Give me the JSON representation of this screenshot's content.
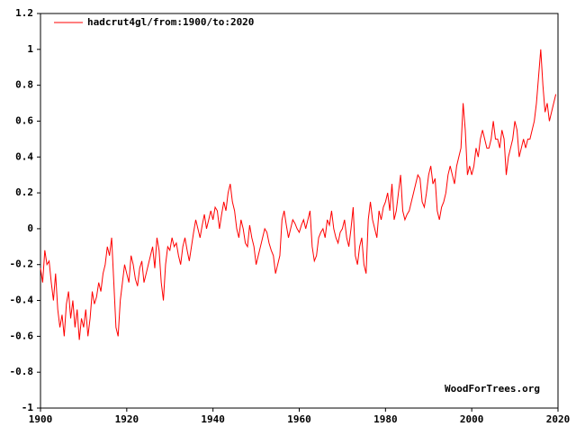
{
  "chart_data": {
    "type": "line",
    "legend": "upper left",
    "annotation": "WoodForTrees.org",
    "xlim": [
      1900,
      2020
    ],
    "xticks": [
      1900,
      1920,
      1940,
      1960,
      1980,
      2000,
      2020
    ],
    "ylim": [
      -1,
      1.2
    ],
    "yticks": [
      -1,
      -0.8,
      -0.6,
      -0.4,
      -0.2,
      0,
      0.2,
      0.4,
      0.6,
      0.8,
      1,
      1.2
    ],
    "x": [
      1900,
      1900.5,
      1901,
      1901.5,
      1902,
      1902.5,
      1903,
      1903.5,
      1904,
      1904.5,
      1905,
      1905.5,
      1906,
      1906.5,
      1907,
      1907.5,
      1908,
      1908.5,
      1909,
      1909.5,
      1910,
      1910.5,
      1911,
      1911.5,
      1912,
      1912.5,
      1913,
      1913.5,
      1914,
      1914.5,
      1915,
      1915.5,
      1916,
      1916.5,
      1917,
      1917.5,
      1918,
      1918.5,
      1919,
      1919.5,
      1920,
      1920.5,
      1921,
      1921.5,
      1922,
      1922.5,
      1923,
      1923.5,
      1924,
      1924.5,
      1925,
      1925.5,
      1926,
      1926.5,
      1927,
      1927.5,
      1928,
      1928.5,
      1929,
      1929.5,
      1930,
      1930.5,
      1931,
      1931.5,
      1932,
      1932.5,
      1933,
      1933.5,
      1934,
      1934.5,
      1935,
      1935.5,
      1936,
      1936.5,
      1937,
      1937.5,
      1938,
      1938.5,
      1939,
      1939.5,
      1940,
      1940.5,
      1941,
      1941.5,
      1942,
      1942.5,
      1943,
      1943.5,
      1944,
      1944.5,
      1945,
      1945.5,
      1946,
      1946.5,
      1947,
      1947.5,
      1948,
      1948.5,
      1949,
      1949.5,
      1950,
      1950.5,
      1951,
      1951.5,
      1952,
      1952.5,
      1953,
      1953.5,
      1954,
      1954.5,
      1955,
      1955.5,
      1956,
      1956.5,
      1957,
      1957.5,
      1958,
      1958.5,
      1959,
      1959.5,
      1960,
      1960.5,
      1961,
      1961.5,
      1962,
      1962.5,
      1963,
      1963.5,
      1964,
      1964.5,
      1965,
      1965.5,
      1966,
      1966.5,
      1967,
      1967.5,
      1968,
      1968.5,
      1969,
      1969.5,
      1970,
      1970.5,
      1971,
      1971.5,
      1972,
      1972.5,
      1973,
      1973.5,
      1974,
      1974.5,
      1975,
      1975.5,
      1976,
      1976.5,
      1977,
      1977.5,
      1978,
      1978.5,
      1979,
      1979.5,
      1980,
      1980.5,
      1981,
      1981.5,
      1982,
      1982.5,
      1983,
      1983.5,
      1984,
      1984.5,
      1985,
      1985.5,
      1986,
      1986.5,
      1987,
      1987.5,
      1988,
      1988.5,
      1989,
      1989.5,
      1990,
      1990.5,
      1991,
      1991.5,
      1992,
      1992.5,
      1993,
      1993.5,
      1994,
      1994.5,
      1995,
      1995.5,
      1996,
      1996.5,
      1997,
      1997.5,
      1998,
      1998.5,
      1999,
      1999.5,
      2000,
      2000.5,
      2001,
      2001.5,
      2002,
      2002.5,
      2003,
      2003.5,
      2004,
      2004.5,
      2005,
      2005.5,
      2006,
      2006.5,
      2007,
      2007.5,
      2008,
      2008.5,
      2009,
      2009.5,
      2010,
      2010.5,
      2011,
      2011.5,
      2012,
      2012.5,
      2013,
      2013.5,
      2014,
      2014.5,
      2015,
      2015.5,
      2016,
      2016.5,
      2017,
      2017.5,
      2018,
      2018.5,
      2019,
      2019.5
    ],
    "series": [
      {
        "name": "hadcrut4gl/from:1900/to:2020",
        "color": "#ff0000",
        "values": [
          -0.22,
          -0.3,
          -0.12,
          -0.2,
          -0.18,
          -0.3,
          -0.4,
          -0.25,
          -0.45,
          -0.55,
          -0.48,
          -0.6,
          -0.42,
          -0.35,
          -0.5,
          -0.4,
          -0.55,
          -0.45,
          -0.62,
          -0.5,
          -0.55,
          -0.45,
          -0.6,
          -0.5,
          -0.35,
          -0.42,
          -0.38,
          -0.3,
          -0.35,
          -0.25,
          -0.2,
          -0.1,
          -0.15,
          -0.05,
          -0.3,
          -0.55,
          -0.6,
          -0.4,
          -0.3,
          -0.2,
          -0.25,
          -0.3,
          -0.15,
          -0.2,
          -0.28,
          -0.32,
          -0.22,
          -0.18,
          -0.3,
          -0.25,
          -0.2,
          -0.15,
          -0.1,
          -0.22,
          -0.05,
          -0.12,
          -0.3,
          -0.4,
          -0.2,
          -0.1,
          -0.12,
          -0.05,
          -0.1,
          -0.08,
          -0.15,
          -0.2,
          -0.1,
          -0.05,
          -0.12,
          -0.18,
          -0.1,
          -0.02,
          0.05,
          0.0,
          -0.05,
          0.02,
          0.08,
          0.0,
          0.05,
          0.1,
          0.05,
          0.12,
          0.1,
          0.0,
          0.08,
          0.15,
          0.1,
          0.2,
          0.25,
          0.15,
          0.1,
          0.0,
          -0.05,
          0.05,
          0.0,
          -0.08,
          -0.1,
          0.02,
          -0.05,
          -0.1,
          -0.2,
          -0.15,
          -0.1,
          -0.05,
          0.0,
          -0.02,
          -0.08,
          -0.12,
          -0.15,
          -0.25,
          -0.2,
          -0.15,
          0.05,
          0.1,
          0.02,
          -0.05,
          0.0,
          0.05,
          0.03,
          0.0,
          -0.02,
          0.02,
          0.05,
          0.0,
          0.05,
          0.1,
          -0.1,
          -0.18,
          -0.15,
          -0.05,
          -0.02,
          0.0,
          -0.05,
          0.05,
          0.02,
          0.1,
          0.0,
          -0.05,
          -0.08,
          -0.02,
          0.0,
          0.05,
          -0.05,
          -0.1,
          0.0,
          0.12,
          -0.15,
          -0.2,
          -0.1,
          -0.05,
          -0.2,
          -0.25,
          0.05,
          0.15,
          0.05,
          0.0,
          -0.05,
          0.1,
          0.05,
          0.12,
          0.15,
          0.2,
          0.1,
          0.25,
          0.05,
          0.1,
          0.2,
          0.3,
          0.1,
          0.05,
          0.08,
          0.1,
          0.15,
          0.2,
          0.25,
          0.3,
          0.28,
          0.15,
          0.12,
          0.2,
          0.3,
          0.35,
          0.25,
          0.28,
          0.1,
          0.05,
          0.12,
          0.15,
          0.2,
          0.3,
          0.35,
          0.3,
          0.25,
          0.35,
          0.4,
          0.45,
          0.7,
          0.55,
          0.3,
          0.35,
          0.3,
          0.35,
          0.45,
          0.4,
          0.5,
          0.55,
          0.5,
          0.45,
          0.45,
          0.5,
          0.6,
          0.5,
          0.5,
          0.45,
          0.55,
          0.5,
          0.3,
          0.4,
          0.45,
          0.5,
          0.6,
          0.55,
          0.4,
          0.45,
          0.5,
          0.45,
          0.5,
          0.5,
          0.55,
          0.6,
          0.7,
          0.85,
          1.0,
          0.8,
          0.65,
          0.7,
          0.6,
          0.65,
          0.7,
          0.75
        ]
      }
    ]
  }
}
